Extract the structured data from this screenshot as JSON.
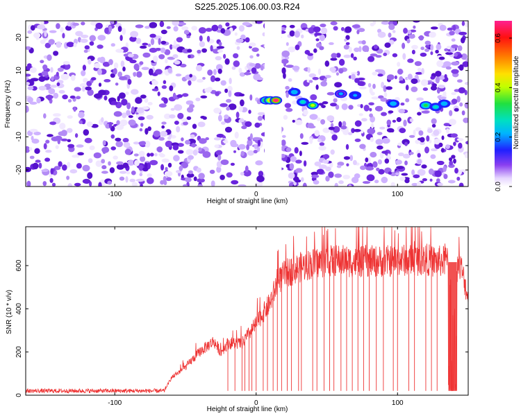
{
  "title": "S225.2025.106.00.03.R24",
  "chart_data": [
    {
      "type": "heatmap",
      "title": "S225.2025.106.00.03.R24",
      "xlabel": "Height of straight line (km)",
      "ylabel": "Frequency (Hz)",
      "xlim": [
        -163,
        150
      ],
      "ylim": [
        -25,
        25
      ],
      "x_ticks": [
        -100,
        0,
        100
      ],
      "y_ticks": [
        -20,
        -10,
        0,
        10,
        20
      ],
      "colorbar": {
        "label": "Normalized spectral amplitude",
        "range": [
          0.0,
          0.67
        ],
        "ticks": [
          "0.0",
          "0.2",
          "0.4",
          "0.6"
        ]
      },
      "gap_x_range": [
        6,
        18
      ],
      "peaks": [
        {
          "x": 7,
          "y": 1.0,
          "z": 0.35
        },
        {
          "x": 10,
          "y": 1.0,
          "z": 0.45
        },
        {
          "x": 14,
          "y": 1.0,
          "z": 0.65
        },
        {
          "x": 27,
          "y": 3.5,
          "z": 0.2
        },
        {
          "x": 33,
          "y": 0.5,
          "z": 0.25
        },
        {
          "x": 40,
          "y": -0.5,
          "z": 0.35
        },
        {
          "x": 60,
          "y": 3.0,
          "z": 0.15
        },
        {
          "x": 70,
          "y": 2.5,
          "z": 0.18
        },
        {
          "x": 97,
          "y": 0.0,
          "z": 0.2
        },
        {
          "x": 120,
          "y": -0.5,
          "z": 0.3
        },
        {
          "x": 127,
          "y": -1.0,
          "z": 0.25
        },
        {
          "x": 133,
          "y": 0.0,
          "z": 0.2
        }
      ]
    },
    {
      "type": "line",
      "xlabel": "Height of straight line (km)",
      "ylabel": "SNR (10 * v/v)",
      "xlim": [
        -163,
        150
      ],
      "ylim": [
        0,
        780
      ],
      "x_ticks": [
        -100,
        0,
        100
      ],
      "y_ticks": [
        0,
        200,
        400,
        600
      ],
      "color": "#ee3333",
      "envelope": {
        "x": [
          -163,
          -100,
          -65,
          -60,
          -50,
          -40,
          -30,
          -25,
          -20,
          -10,
          0,
          10,
          15,
          20,
          30,
          40,
          50,
          60,
          70,
          80,
          90,
          100,
          110,
          120,
          125,
          135,
          140,
          145,
          150
        ],
        "y": [
          20,
          20,
          20,
          80,
          130,
          200,
          250,
          200,
          240,
          240,
          330,
          430,
          520,
          560,
          590,
          610,
          620,
          625,
          615,
          620,
          620,
          625,
          625,
          630,
          620,
          620,
          600,
          590,
          450
        ]
      },
      "dropouts_x": [
        -20,
        -15,
        -10,
        -8,
        -5,
        -3,
        0,
        5,
        8,
        12,
        15,
        18,
        22,
        25,
        30,
        32,
        40,
        43,
        48,
        52,
        55,
        60,
        64,
        68,
        72,
        76,
        80,
        85,
        90,
        97,
        100,
        108,
        112,
        120,
        124,
        128
      ],
      "dropout_band_x": [
        136,
        142
      ]
    }
  ]
}
